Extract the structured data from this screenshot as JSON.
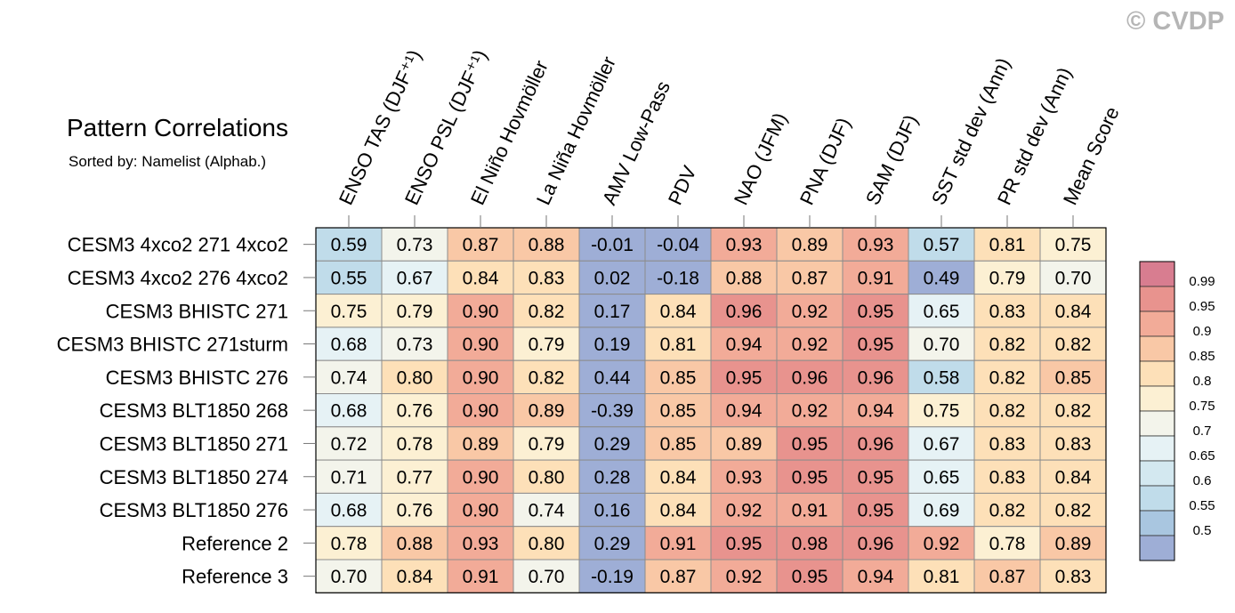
{
  "watermark": "© CVDP",
  "chart_data": {
    "type": "heatmap",
    "title": "Pattern Correlations",
    "subtitle": "Sorted by: Namelist (Alphab.)",
    "columns": [
      "ENSO TAS (DJF⁺¹)",
      "ENSO PSL (DJF⁺¹)",
      "El Niño Hovmöller",
      "La Niña Hovmöller",
      "AMV Low-Pass",
      "PDV",
      "NAO (JFM)",
      "PNA (DJF)",
      "SAM (DJF)",
      "SST std dev (Ann)",
      "PR std dev (Ann)",
      "Mean Score"
    ],
    "rows": [
      "CESM3 4xco2 271 4xco2",
      "CESM3 4xco2 276 4xco2",
      "CESM3 BHISTC 271",
      "CESM3 BHISTC 271sturm",
      "CESM3 BHISTC 276",
      "CESM3 BLT1850 268",
      "CESM3 BLT1850 271",
      "CESM3 BLT1850 274",
      "CESM3 BLT1850 276",
      "Reference 2",
      "Reference 3"
    ],
    "values": [
      [
        "0.59",
        "0.73",
        "0.87",
        "0.88",
        "-0.01",
        "-0.04",
        "0.93",
        "0.89",
        "0.93",
        "0.57",
        "0.81",
        "0.75"
      ],
      [
        "0.55",
        "0.67",
        "0.84",
        "0.83",
        "0.02",
        "-0.18",
        "0.88",
        "0.87",
        "0.91",
        "0.49",
        "0.79",
        "0.70"
      ],
      [
        "0.75",
        "0.79",
        "0.90",
        "0.82",
        "0.17",
        "0.84",
        "0.96",
        "0.92",
        "0.95",
        "0.65",
        "0.83",
        "0.84"
      ],
      [
        "0.68",
        "0.73",
        "0.90",
        "0.79",
        "0.19",
        "0.81",
        "0.94",
        "0.92",
        "0.95",
        "0.70",
        "0.82",
        "0.82"
      ],
      [
        "0.74",
        "0.80",
        "0.90",
        "0.82",
        "0.44",
        "0.85",
        "0.95",
        "0.96",
        "0.96",
        "0.58",
        "0.82",
        "0.85"
      ],
      [
        "0.68",
        "0.76",
        "0.90",
        "0.89",
        "-0.39",
        "0.85",
        "0.94",
        "0.92",
        "0.94",
        "0.75",
        "0.82",
        "0.82"
      ],
      [
        "0.72",
        "0.78",
        "0.89",
        "0.79",
        "0.29",
        "0.85",
        "0.89",
        "0.95",
        "0.96",
        "0.67",
        "0.83",
        "0.83"
      ],
      [
        "0.71",
        "0.77",
        "0.90",
        "0.80",
        "0.28",
        "0.84",
        "0.93",
        "0.95",
        "0.95",
        "0.65",
        "0.83",
        "0.84"
      ],
      [
        "0.68",
        "0.76",
        "0.90",
        "0.74",
        "0.16",
        "0.84",
        "0.92",
        "0.91",
        "0.95",
        "0.69",
        "0.82",
        "0.82"
      ],
      [
        "0.78",
        "0.88",
        "0.93",
        "0.80",
        "0.29",
        "0.91",
        "0.95",
        "0.98",
        "0.96",
        "0.92",
        "0.78",
        "0.89"
      ],
      [
        "0.70",
        "0.84",
        "0.91",
        "0.70",
        "-0.19",
        "0.87",
        "0.92",
        "0.95",
        "0.94",
        "0.81",
        "0.87",
        "0.83"
      ]
    ],
    "colorbar": {
      "labels": [
        "0.99",
        "0.95",
        "0.9",
        "0.85",
        "0.8",
        "0.75",
        "0.7",
        "0.65",
        "0.6",
        "0.55",
        "0.5"
      ],
      "thresholds": [
        0.5,
        0.55,
        0.6,
        0.65,
        0.7,
        0.75,
        0.8,
        0.85,
        0.9,
        0.95,
        0.99
      ],
      "colors": [
        "#9eaed6",
        "#a9c6e0",
        "#c0dcea",
        "#d3e8f0",
        "#e6f2f5",
        "#f3f4eb",
        "#fcf0d3",
        "#fde0b8",
        "#f9c8a6",
        "#f2ab98",
        "#e8938e",
        "#d87d90"
      ]
    }
  }
}
